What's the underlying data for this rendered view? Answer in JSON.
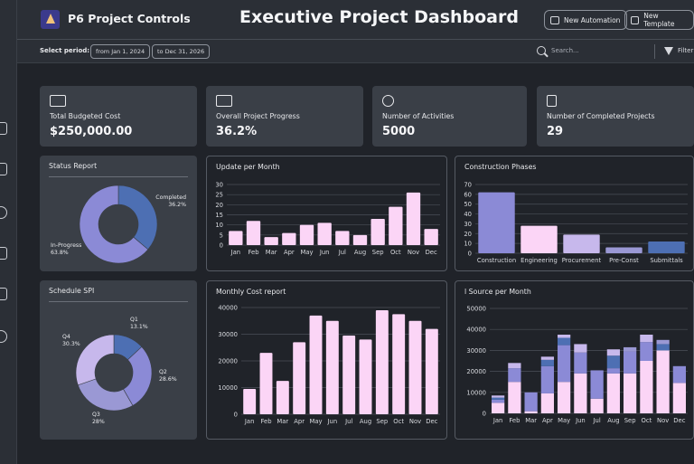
{
  "app": {
    "name": "P6 Project Controls",
    "title": "Executive Project Dashboard"
  },
  "toolbar": {
    "new_automation": "New Automation",
    "new_template": "New Template"
  },
  "filters": {
    "period_label": "Select period:",
    "from": "from Jan 1, 2024",
    "to": "to Dec 31, 2026",
    "search_placeholder": "Search...",
    "filter_label": "Filter"
  },
  "kpis": [
    {
      "label": "Total Budgeted Cost",
      "value": "$250,000.00",
      "icon": "money-icon"
    },
    {
      "label": "Overall Project Progress",
      "value": "36.2%",
      "icon": "chart-icon"
    },
    {
      "label": "Number of Activities",
      "value": "5000",
      "icon": "user-icon"
    },
    {
      "label": "Number of Completed Projects",
      "value": "29",
      "icon": "clipboard-icon"
    }
  ],
  "colors": {
    "primary_blue": "#4d6fb3",
    "lavender": "#8b8ad6",
    "pink": "#fbd5f6",
    "light_lavender": "#c7b8ec"
  },
  "chart_data": [
    {
      "id": "status-report",
      "type": "pie",
      "title": "Status Report",
      "slices": [
        {
          "label": "Completed",
          "value": 36.2,
          "display": "36.2%",
          "color": "#4d6fb3"
        },
        {
          "label": "In-Progress",
          "value": 63.8,
          "display": "63.8%",
          "color": "#8b8ad6"
        }
      ]
    },
    {
      "id": "update-per-month",
      "type": "bar",
      "title": "Update per Month",
      "categories": [
        "Jan",
        "Feb",
        "Mar",
        "Apr",
        "May",
        "Jun",
        "Jul",
        "Aug",
        "Sep",
        "Oct",
        "Nov",
        "Dec"
      ],
      "values": [
        7,
        12,
        4,
        6,
        10,
        11,
        7,
        5,
        13,
        19,
        26,
        8
      ],
      "ylim": [
        0,
        30
      ],
      "yticks": [
        0,
        5,
        10,
        15,
        20,
        25,
        30
      ],
      "color": "#fbd5f6"
    },
    {
      "id": "construction-phases",
      "type": "bar",
      "title": "Construction Phases",
      "categories": [
        "Construction",
        "Engineering",
        "Procurement",
        "Pre-Const",
        "Submittals"
      ],
      "values": [
        62,
        28,
        19,
        6,
        12
      ],
      "colors": [
        "#8b8ad6",
        "#fbd5f6",
        "#c7b8ec",
        "#9a98d4",
        "#4d6fb3"
      ],
      "ylim": [
        0,
        70
      ],
      "yticks": [
        0,
        10,
        20,
        30,
        40,
        50,
        60,
        70
      ]
    },
    {
      "id": "schedule-spi",
      "type": "pie",
      "title": "Schedule SPI",
      "slices": [
        {
          "label": "Q1",
          "value": 13.1,
          "display": "13.1%",
          "color": "#4d6fb3"
        },
        {
          "label": "Q2",
          "value": 28.6,
          "display": "28.6%",
          "color": "#8b8ad6"
        },
        {
          "label": "Q3",
          "value": 28.0,
          "display": "28%",
          "color": "#9a98d4"
        },
        {
          "label": "Q4",
          "value": 30.3,
          "display": "30.3%",
          "color": "#c7b8ec"
        }
      ]
    },
    {
      "id": "monthly-cost",
      "type": "bar",
      "title": "Monthly Cost report",
      "categories": [
        "Jan",
        "Feb",
        "Mar",
        "Apr",
        "May",
        "Jun",
        "Jul",
        "Aug",
        "Sep",
        "Oct",
        "Nov",
        "Dec"
      ],
      "values": [
        9500,
        23000,
        12500,
        27000,
        37000,
        35000,
        29500,
        28000,
        39000,
        37500,
        35000,
        32000
      ],
      "ylim": [
        0,
        40000
      ],
      "yticks": [
        0,
        10000,
        20000,
        30000,
        40000
      ],
      "color": "#fbd5f6"
    },
    {
      "id": "source-per-month",
      "type": "bar",
      "stacked": true,
      "title": "l Source per Month",
      "categories": [
        "Jan",
        "Feb",
        "Mar",
        "Apr",
        "May",
        "Jun",
        "Jul",
        "Aug",
        "Sep",
        "Oct",
        "Nov",
        "Dec"
      ],
      "ylim": [
        0,
        50000
      ],
      "yticks": [
        0,
        10000,
        20000,
        30000,
        40000,
        50000
      ],
      "series": [
        {
          "color": "#fbd5f6",
          "values": [
            5000,
            15000,
            1000,
            9500,
            15000,
            19000,
            7000,
            19000,
            19000,
            25000,
            30000,
            14500
          ]
        },
        {
          "color": "#8b8ad6",
          "values": [
            1500,
            6500,
            9000,
            13000,
            17500,
            10000,
            13500,
            2500,
            10500,
            9000,
            0,
            8000
          ]
        },
        {
          "color": "#4d6fb3",
          "values": [
            1000,
            0,
            0,
            3000,
            3500,
            0,
            0,
            6000,
            0,
            0,
            3000,
            0
          ]
        },
        {
          "color": "#c7b8ec",
          "values": [
            1000,
            2500,
            0,
            1500,
            1500,
            4000,
            0,
            3000,
            0,
            3500,
            0,
            0
          ]
        },
        {
          "color": "#9a98d4",
          "values": [
            0,
            0,
            0,
            0,
            0,
            0,
            0,
            0,
            2000,
            0,
            2000,
            0
          ]
        }
      ]
    }
  ]
}
